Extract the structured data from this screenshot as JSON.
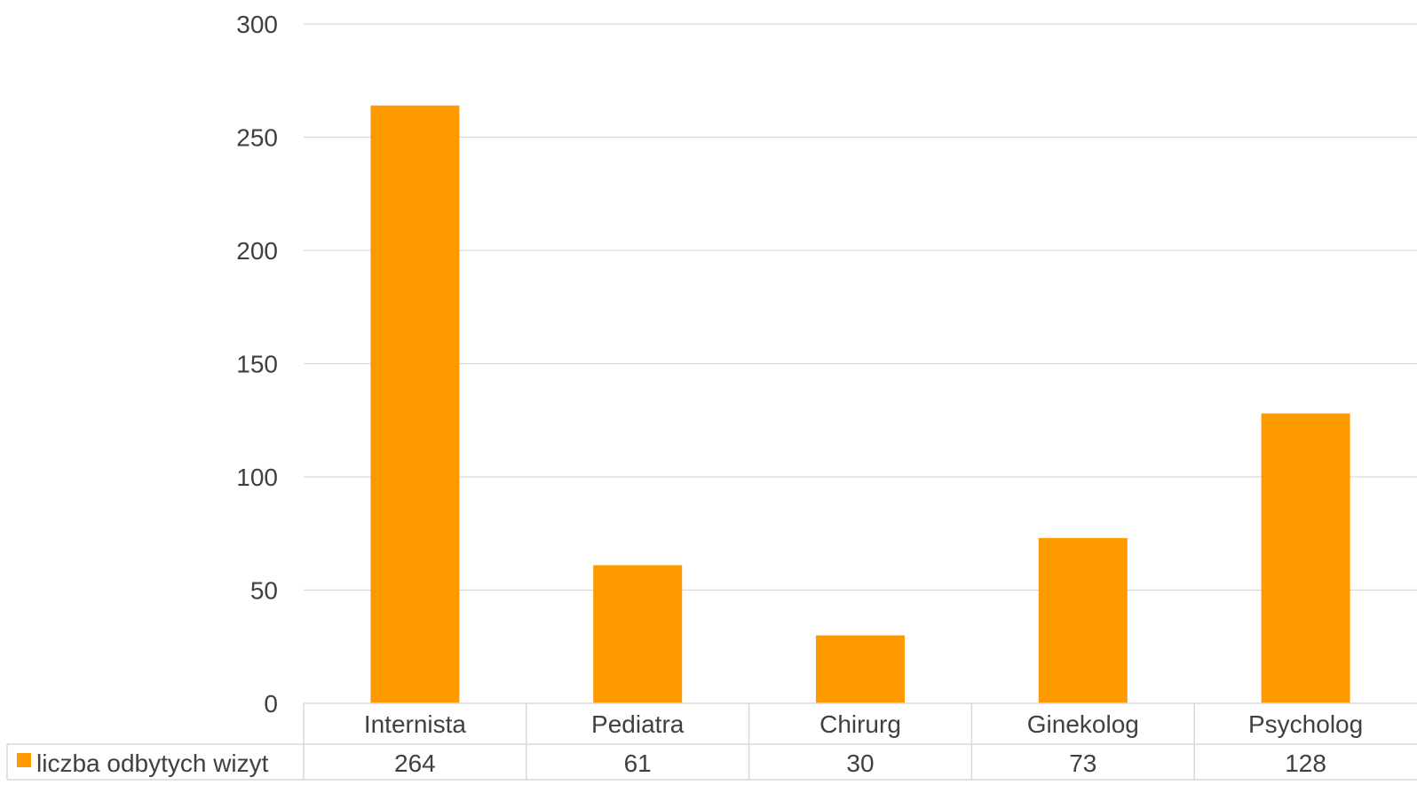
{
  "chart_data": {
    "type": "bar",
    "categories": [
      "Internista",
      "Pediatra",
      "Chirurg",
      "Ginekolog",
      "Psycholog"
    ],
    "series": [
      {
        "name": "liczba odbytych wizyt",
        "values": [
          264,
          61,
          30,
          73,
          128
        ],
        "color": "#ff9900"
      }
    ],
    "y_ticks": [
      "0",
      "50",
      "100",
      "150",
      "200",
      "250",
      "300"
    ],
    "ylim": [
      0,
      300
    ],
    "grid": true,
    "data_table": true,
    "legend_placement": "data-table-row-left"
  }
}
